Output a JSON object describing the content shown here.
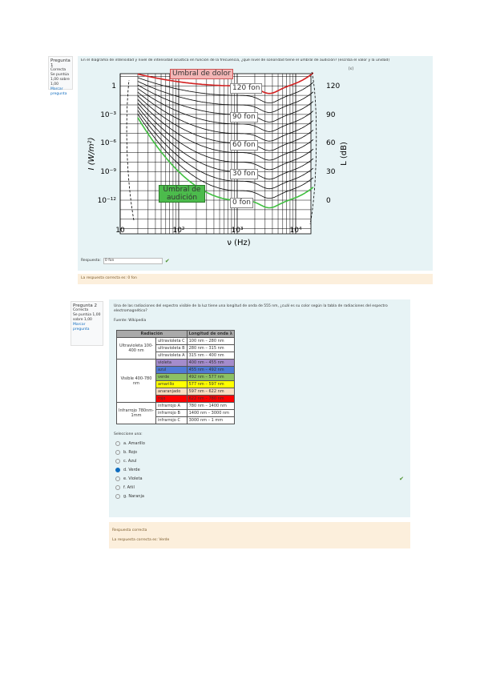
{
  "question1": {
    "info": {
      "number": "Pregunta 1",
      "state": "Correcta",
      "grade": "Se puntúa 1,00 sobre 1,00",
      "flag": "Marcar pregunta"
    },
    "text": "En el diagrama de intensidad y nivel de intensidad acústica en función de la frecuencia, ¿qué nivel de sonoridad tiene el umbral de audición? (escriba el valor y la unidad)",
    "figure": {
      "pain_label": "Umbral de dolor",
      "hearing_label": "Umbral de audición",
      "phon_labels": [
        "120 fon",
        "90 fon",
        "60 fon",
        "30 fon",
        "0 fon"
      ],
      "left_axis_title": "I (W/m²)",
      "right_axis_title": "L (dB)",
      "bottom_axis_title": "ν (Hz)",
      "left_ticks": [
        "1",
        "10⁻³",
        "10⁻⁶",
        "10⁻⁹",
        "10⁻¹²"
      ],
      "right_ticks": [
        "120",
        "90",
        "60",
        "30",
        "0"
      ],
      "bottom_ticks": [
        "10",
        "10²",
        "10³",
        "10⁴"
      ],
      "corner": "[s]"
    },
    "answer_label": "Respuesta:",
    "answer": "0 fon",
    "feedback": "La respuesta correcta es: 0 fon"
  },
  "question2": {
    "info": {
      "number": "Pregunta 2",
      "state": "Correcta",
      "grade": "Se puntúa 1,00 sobre 1,00",
      "flag": "Marcar pregunta"
    },
    "text": "Una de las radiaciones del espectro visible de la luz tiene una longitud de onda de 555 nm, ¿cuál es su color según la tabla de radiaciones del espectro electromagnético?",
    "source": "Fuente: Wikipedia",
    "table": {
      "header": [
        "Radiación",
        "Longitud de onda λ"
      ],
      "groups": [
        {
          "name": "Ultravioleta 100-400 nm",
          "rows": [
            [
              "ultravioleta C",
              "100 nm – 280 nm"
            ],
            [
              "ultravioleta B",
              "280 nm – 315 nm"
            ],
            [
              "ultravioleta A",
              "315 nm – 400 nm"
            ]
          ]
        },
        {
          "name": "Visible 400-780 nm",
          "rows": [
            [
              "violeta",
              "400 nm – 455 nm"
            ],
            [
              "azul",
              "455 nm – 492 nm"
            ],
            [
              "verde",
              "492 nm – 577 nm"
            ],
            [
              "amarillo",
              "577 nm – 597 nm"
            ],
            [
              "anaranjado",
              "597 nm – 622 nm"
            ],
            [
              "rojo",
              "622 nm – 780 nm"
            ]
          ]
        },
        {
          "name": "Infrarrojo 780nm-1mm",
          "rows": [
            [
              "infrarrojo A",
              "780 nm – 1400 nm"
            ],
            [
              "infrarrojo B",
              "1400 nm – 3000 nm"
            ],
            [
              "infrarrojo C",
              "3000 nm – 1 mm"
            ]
          ]
        }
      ]
    },
    "prompt": "Seleccione una:",
    "options": [
      "a. Amarillo",
      "b. Rojo",
      "c. Azul",
      "d. Verde",
      "e. Violeta",
      "f. Añil",
      "g. Naranja"
    ],
    "feedback_title": "Respuesta correcta",
    "feedback": "La respuesta correcta es: Verde"
  }
}
